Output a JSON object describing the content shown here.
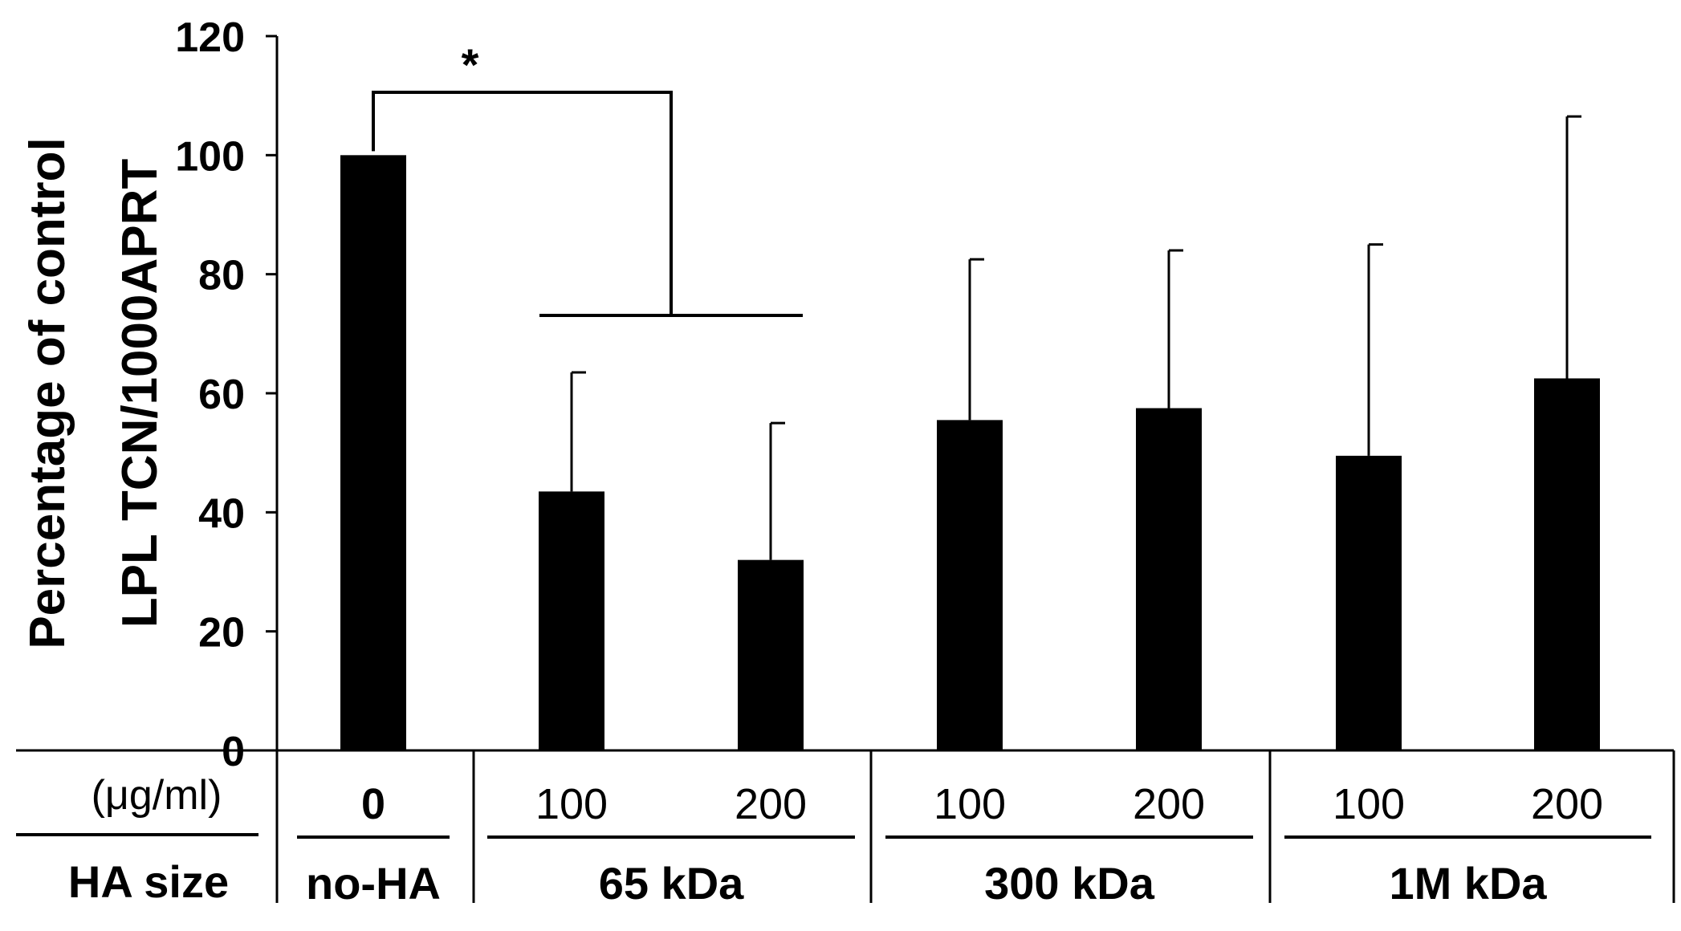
{
  "chart_data": {
    "type": "bar",
    "ylabel_line1": "Percentage of control",
    "ylabel_line2": "LPL TCN/1000APRT",
    "ylim": [
      0,
      120
    ],
    "yticks": [
      "0",
      "20",
      "40",
      "60",
      "80",
      "100",
      "120"
    ],
    "ytick_values": [
      0,
      20,
      40,
      60,
      80,
      100,
      120
    ],
    "color": "#000000",
    "categories": [
      "0",
      "100",
      "200",
      "100",
      "200",
      "100",
      "200"
    ],
    "values": [
      100,
      43.5,
      32,
      55.5,
      57.5,
      49.5,
      62.5
    ],
    "errors": [
      0,
      20,
      23,
      27,
      26.5,
      35.5,
      44
    ],
    "groups": [
      {
        "name": "no-HA",
        "bars": [
          0
        ]
      },
      {
        "name": "65 kDa",
        "bars": [
          1,
          2
        ]
      },
      {
        "name": "300 kDa",
        "bars": [
          3,
          4
        ]
      },
      {
        "name": "1M kDa",
        "bars": [
          5,
          6
        ]
      }
    ],
    "row_labels": {
      "dose": "(μg/ml)",
      "size": "HA size"
    },
    "significance": {
      "label": "*",
      "from_bar": 0,
      "to_bars": [
        1,
        2
      ]
    }
  }
}
